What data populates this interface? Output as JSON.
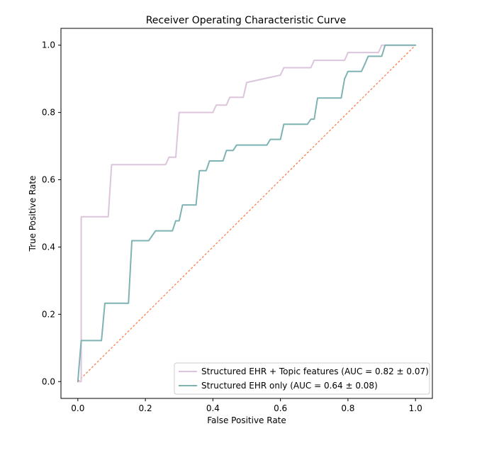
{
  "chart_data": {
    "type": "line",
    "title": "Receiver Operating Characteristic Curve",
    "xlabel": "False Positive Rate",
    "ylabel": "True Positive Rate",
    "xlim": [
      -0.05,
      1.05
    ],
    "ylim": [
      -0.05,
      1.05
    ],
    "xticks": [
      0.0,
      0.2,
      0.4,
      0.6,
      0.8,
      1.0
    ],
    "xtick_labels": [
      "0.0",
      "0.2",
      "0.4",
      "0.6",
      "0.8",
      "1.0"
    ],
    "yticks": [
      0.0,
      0.2,
      0.4,
      0.6,
      0.8,
      1.0
    ],
    "ytick_labels": [
      "0.0",
      "0.2",
      "0.4",
      "0.6",
      "0.8",
      "1.0"
    ],
    "grid": false,
    "legend_position": "lower-right",
    "series": [
      {
        "name": "Structured EHR + Topic features (AUC = 0.82 ± 0.07)",
        "color": "#dcc5dc",
        "x": [
          0,
          0.01,
          0.01,
          0.09,
          0.1,
          0.26,
          0.27,
          0.29,
          0.3,
          0.4,
          0.41,
          0.44,
          0.45,
          0.49,
          0.5,
          0.6,
          0.61,
          0.69,
          0.7,
          0.79,
          0.8,
          0.89,
          0.9,
          0.93,
          1.0
        ],
        "y": [
          0,
          0,
          0.49,
          0.49,
          0.645,
          0.645,
          0.667,
          0.667,
          0.8,
          0.8,
          0.822,
          0.822,
          0.845,
          0.845,
          0.889,
          0.911,
          0.933,
          0.933,
          0.955,
          0.955,
          0.978,
          0.978,
          1.0,
          1.0,
          1.0
        ]
      },
      {
        "name": "Structured EHR only (AUC = 0.64 ± 0.08)",
        "color": "#7fb3b3",
        "x": [
          0,
          0.01,
          0.07,
          0.08,
          0.15,
          0.16,
          0.21,
          0.23,
          0.28,
          0.29,
          0.3,
          0.31,
          0.35,
          0.36,
          0.38,
          0.39,
          0.4,
          0.41,
          0.43,
          0.44,
          0.46,
          0.47,
          0.56,
          0.57,
          0.6,
          0.61,
          0.68,
          0.69,
          0.7,
          0.71,
          0.77,
          0.78,
          0.79,
          0.8,
          0.84,
          0.85,
          0.86,
          0.9,
          0.91,
          1.0
        ],
        "y": [
          0,
          0.122,
          0.122,
          0.233,
          0.233,
          0.419,
          0.419,
          0.448,
          0.448,
          0.478,
          0.478,
          0.525,
          0.525,
          0.627,
          0.627,
          0.656,
          0.656,
          0.656,
          0.656,
          0.687,
          0.687,
          0.703,
          0.703,
          0.72,
          0.72,
          0.765,
          0.765,
          0.78,
          0.78,
          0.843,
          0.843,
          0.843,
          0.9,
          0.922,
          0.922,
          0.944,
          0.967,
          0.967,
          1.0,
          1.0
        ]
      }
    ],
    "reference_line": {
      "name": "chance",
      "color": "#ff7f50",
      "x": [
        0,
        1
      ],
      "y": [
        0,
        1
      ]
    }
  }
}
